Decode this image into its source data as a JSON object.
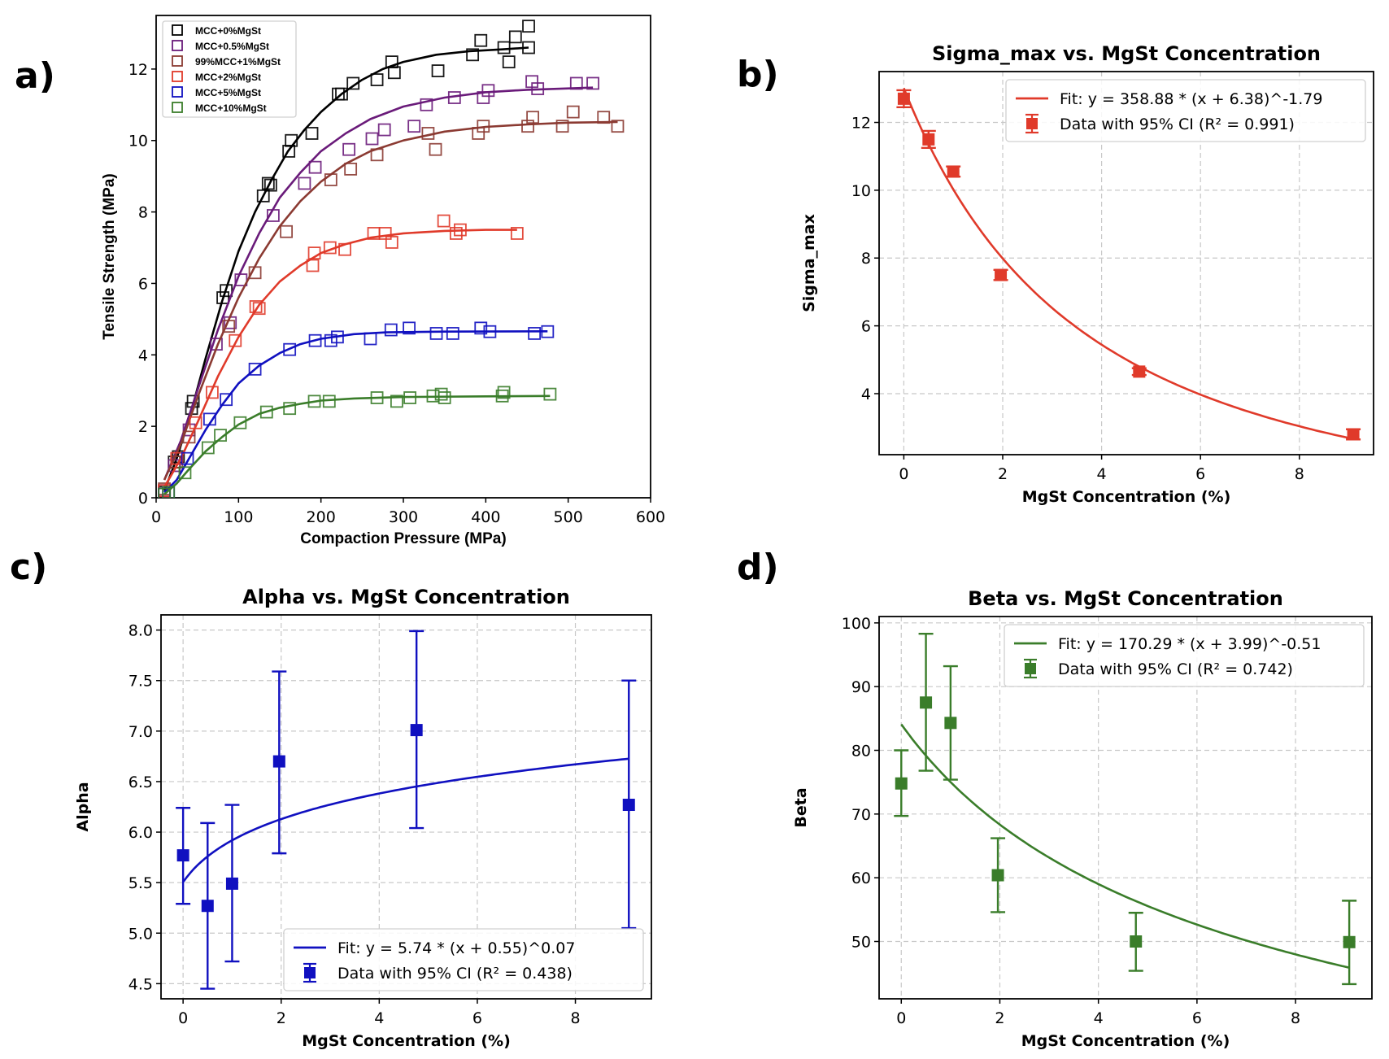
{
  "figure": {
    "panel_labels": [
      "a)",
      "b)",
      "c)",
      "d)"
    ]
  },
  "chart_data": [
    {
      "id": "a",
      "type": "scatter",
      "title": "",
      "xlabel": "Compaction Pressure (MPa)",
      "ylabel": "Tensile Strength (MPa)",
      "xlim": [
        0,
        600
      ],
      "ylim": [
        0,
        13.5
      ],
      "xticks": [
        0,
        100,
        200,
        300,
        400,
        500,
        600
      ],
      "yticks": [
        0,
        2,
        4,
        6,
        8,
        10,
        12
      ],
      "grid": false,
      "legend_position": "top-left",
      "marker": "open-square",
      "series": [
        {
          "name": "MCC+0%MgSt",
          "color": "#000000",
          "points": [
            [
              10,
              0.15
            ],
            [
              22,
              1.0
            ],
            [
              27,
              1.15
            ],
            [
              43,
              2.5
            ],
            [
              45,
              2.7
            ],
            [
              81,
              5.6
            ],
            [
              85,
              5.8
            ],
            [
              130,
              8.45
            ],
            [
              136,
              8.8
            ],
            [
              139,
              8.75
            ],
            [
              161,
              9.7
            ],
            [
              164,
              10.0
            ],
            [
              189,
              10.2
            ],
            [
              221,
              11.3
            ],
            [
              225,
              11.3
            ],
            [
              239,
              11.6
            ],
            [
              268,
              11.7
            ],
            [
              289,
              11.9
            ],
            [
              286,
              12.2
            ],
            [
              342,
              11.95
            ],
            [
              384,
              12.4
            ],
            [
              394,
              12.8
            ],
            [
              422,
              12.6
            ],
            [
              428,
              12.2
            ],
            [
              436,
              12.9
            ],
            [
              452,
              13.2
            ],
            [
              452,
              12.6
            ]
          ],
          "fit": [
            [
              10,
              0.2
            ],
            [
              25,
              1.1
            ],
            [
              40,
              2.2
            ],
            [
              60,
              3.9
            ],
            [
              80,
              5.5
            ],
            [
              100,
              6.9
            ],
            [
              120,
              8.0
            ],
            [
              140,
              8.9
            ],
            [
              160,
              9.7
            ],
            [
              180,
              10.3
            ],
            [
              200,
              10.8
            ],
            [
              225,
              11.3
            ],
            [
              250,
              11.7
            ],
            [
              275,
              12.0
            ],
            [
              300,
              12.2
            ],
            [
              340,
              12.4
            ],
            [
              380,
              12.5
            ],
            [
              420,
              12.55
            ],
            [
              452,
              12.6
            ]
          ]
        },
        {
          "name": "MCC+0.5%MgSt",
          "color": "#6a1b7a",
          "points": [
            [
              10,
              0.2
            ],
            [
              22,
              0.9
            ],
            [
              40,
              1.9
            ],
            [
              73,
              4.3
            ],
            [
              90,
              4.9
            ],
            [
              103,
              6.1
            ],
            [
              142,
              7.9
            ],
            [
              180,
              8.8
            ],
            [
              193,
              9.25
            ],
            [
              234,
              9.75
            ],
            [
              262,
              10.05
            ],
            [
              277,
              10.3
            ],
            [
              313,
              10.4
            ],
            [
              328,
              11.0
            ],
            [
              362,
              11.2
            ],
            [
              397,
              11.2
            ],
            [
              403,
              11.4
            ],
            [
              456,
              11.65
            ],
            [
              463,
              11.45
            ],
            [
              510,
              11.6
            ],
            [
              530,
              11.6
            ]
          ],
          "fit": [
            [
              10,
              0.5
            ],
            [
              30,
              1.6
            ],
            [
              50,
              3.0
            ],
            [
              75,
              4.7
            ],
            [
              100,
              6.2
            ],
            [
              125,
              7.4
            ],
            [
              150,
              8.4
            ],
            [
              175,
              9.1
            ],
            [
              200,
              9.7
            ],
            [
              230,
              10.2
            ],
            [
              260,
              10.6
            ],
            [
              300,
              10.95
            ],
            [
              350,
              11.2
            ],
            [
              400,
              11.35
            ],
            [
              450,
              11.42
            ],
            [
              530,
              11.48
            ]
          ]
        },
        {
          "name": "99%MCC+1%MgSt",
          "color": "#8b3a32",
          "points": [
            [
              10,
              0.25
            ],
            [
              25,
              1.0
            ],
            [
              40,
              1.7
            ],
            [
              88,
              4.8
            ],
            [
              120,
              6.3
            ],
            [
              158,
              7.45
            ],
            [
              212,
              8.9
            ],
            [
              236,
              9.2
            ],
            [
              268,
              9.6
            ],
            [
              339,
              9.75
            ],
            [
              330,
              10.2
            ],
            [
              391,
              10.2
            ],
            [
              397,
              10.4
            ],
            [
              451,
              10.4
            ],
            [
              457,
              10.65
            ],
            [
              506,
              10.8
            ],
            [
              493,
              10.4
            ],
            [
              543,
              10.65
            ],
            [
              560,
              10.4
            ]
          ],
          "fit": [
            [
              10,
              0.5
            ],
            [
              30,
              1.5
            ],
            [
              50,
              2.8
            ],
            [
              75,
              4.3
            ],
            [
              100,
              5.6
            ],
            [
              125,
              6.7
            ],
            [
              150,
              7.6
            ],
            [
              175,
              8.3
            ],
            [
              200,
              8.85
            ],
            [
              230,
              9.35
            ],
            [
              260,
              9.7
            ],
            [
              300,
              10.0
            ],
            [
              350,
              10.25
            ],
            [
              400,
              10.38
            ],
            [
              450,
              10.45
            ],
            [
              500,
              10.5
            ],
            [
              560,
              10.52
            ]
          ]
        },
        {
          "name": "MCC+2%MgSt",
          "color": "#e03a2a",
          "points": [
            [
              10,
              0.2
            ],
            [
              25,
              1.1
            ],
            [
              48,
              2.1
            ],
            [
              68,
              2.95
            ],
            [
              96,
              4.4
            ],
            [
              121,
              5.35
            ],
            [
              125,
              5.3
            ],
            [
              190,
              6.5
            ],
            [
              192,
              6.85
            ],
            [
              211,
              7.0
            ],
            [
              229,
              6.95
            ],
            [
              264,
              7.4
            ],
            [
              278,
              7.4
            ],
            [
              286,
              7.15
            ],
            [
              349,
              7.75
            ],
            [
              364,
              7.4
            ],
            [
              369,
              7.5
            ],
            [
              438,
              7.4
            ]
          ],
          "fit": [
            [
              10,
              0.3
            ],
            [
              30,
              1.1
            ],
            [
              50,
              2.1
            ],
            [
              75,
              3.4
            ],
            [
              100,
              4.5
            ],
            [
              125,
              5.4
            ],
            [
              150,
              6.05
            ],
            [
              175,
              6.5
            ],
            [
              200,
              6.85
            ],
            [
              230,
              7.1
            ],
            [
              260,
              7.28
            ],
            [
              300,
              7.4
            ],
            [
              350,
              7.47
            ],
            [
              400,
              7.5
            ],
            [
              438,
              7.5
            ]
          ]
        },
        {
          "name": "MCC+5%MgSt",
          "color": "#1010c0",
          "points": [
            [
              10,
              0.1
            ],
            [
              15,
              0.15
            ],
            [
              38,
              1.1
            ],
            [
              65,
              2.2
            ],
            [
              85,
              2.75
            ],
            [
              120,
              3.6
            ],
            [
              162,
              4.15
            ],
            [
              193,
              4.4
            ],
            [
              212,
              4.4
            ],
            [
              220,
              4.5
            ],
            [
              260,
              4.45
            ],
            [
              285,
              4.7
            ],
            [
              307,
              4.75
            ],
            [
              340,
              4.6
            ],
            [
              360,
              4.6
            ],
            [
              394,
              4.75
            ],
            [
              405,
              4.65
            ],
            [
              459,
              4.6
            ],
            [
              475,
              4.65
            ]
          ],
          "fit": [
            [
              10,
              0.15
            ],
            [
              25,
              0.5
            ],
            [
              40,
              1.1
            ],
            [
              60,
              1.9
            ],
            [
              80,
              2.6
            ],
            [
              100,
              3.2
            ],
            [
              125,
              3.7
            ],
            [
              150,
              4.05
            ],
            [
              175,
              4.3
            ],
            [
              200,
              4.45
            ],
            [
              240,
              4.58
            ],
            [
              280,
              4.63
            ],
            [
              350,
              4.65
            ],
            [
              475,
              4.66
            ]
          ]
        },
        {
          "name": "MCC+10%MgSt",
          "color": "#3a7d2a",
          "points": [
            [
              10,
              0.1
            ],
            [
              15,
              0.15
            ],
            [
              35,
              0.7
            ],
            [
              63,
              1.4
            ],
            [
              78,
              1.75
            ],
            [
              102,
              2.1
            ],
            [
              134,
              2.4
            ],
            [
              162,
              2.5
            ],
            [
              192,
              2.7
            ],
            [
              210,
              2.7
            ],
            [
              268,
              2.8
            ],
            [
              292,
              2.7
            ],
            [
              308,
              2.8
            ],
            [
              336,
              2.85
            ],
            [
              346,
              2.9
            ],
            [
              350,
              2.8
            ],
            [
              420,
              2.85
            ],
            [
              422,
              2.95
            ],
            [
              478,
              2.9
            ]
          ],
          "fit": [
            [
              10,
              0.1
            ],
            [
              25,
              0.4
            ],
            [
              40,
              0.8
            ],
            [
              60,
              1.3
            ],
            [
              80,
              1.7
            ],
            [
              100,
              2.05
            ],
            [
              125,
              2.35
            ],
            [
              150,
              2.52
            ],
            [
              175,
              2.63
            ],
            [
              200,
              2.72
            ],
            [
              240,
              2.78
            ],
            [
              300,
              2.82
            ],
            [
              400,
              2.84
            ],
            [
              478,
              2.85
            ]
          ]
        }
      ]
    },
    {
      "id": "b",
      "type": "scatter",
      "title": "Sigma_max vs. MgSt Concentration",
      "xlabel": "MgSt Concentration (%)",
      "ylabel": "Sigma_max",
      "xlim": [
        -0.5,
        9.5
      ],
      "ylim": [
        2.2,
        13.5
      ],
      "xticks": [
        0,
        2,
        4,
        6,
        8
      ],
      "yticks": [
        4,
        6,
        8,
        10,
        12
      ],
      "grid": true,
      "legend_position": "top-right",
      "color": "#e03a2a",
      "fit_label": "Fit: y = 358.88 * (x + 6.38)^-1.79",
      "data_label": "Data with 95% CI (R² = 0.991)",
      "fit_params": {
        "a": 358.88,
        "c": 6.38,
        "b": -1.79
      },
      "x": [
        0,
        0.5,
        1,
        1.96,
        4.76,
        9.09
      ],
      "y": [
        12.7,
        11.5,
        10.55,
        7.5,
        4.65,
        2.8
      ],
      "ci_low": [
        12.45,
        11.25,
        10.4,
        7.35,
        4.55,
        2.65
      ],
      "ci_high": [
        12.95,
        11.75,
        10.7,
        7.65,
        4.75,
        2.95
      ]
    },
    {
      "id": "c",
      "type": "scatter",
      "title": "Alpha vs. MgSt Concentration",
      "xlabel": "MgSt Concentration (%)",
      "ylabel": "Alpha",
      "xlim": [
        -0.45,
        9.55
      ],
      "ylim": [
        4.35,
        8.15
      ],
      "xticks": [
        0,
        2,
        4,
        6,
        8
      ],
      "yticks": [
        4.5,
        5.0,
        5.5,
        6.0,
        6.5,
        7.0,
        7.5,
        8.0
      ],
      "ytick_labels": [
        "4.5",
        "5.0",
        "5.5",
        "6.0",
        "6.5",
        "7.0",
        "7.5",
        "8.0"
      ],
      "grid": true,
      "legend_position": "bottom-right",
      "color": "#1010c0",
      "fit_label": "Fit: y = 5.74 * (x + 0.55)^0.07",
      "data_label": "Data with 95% CI (R² = 0.438)",
      "fit_params": {
        "a": 5.74,
        "c": 0.55,
        "b": 0.07
      },
      "x": [
        0,
        0.5,
        1,
        1.96,
        4.76,
        9.09
      ],
      "y": [
        5.77,
        5.27,
        5.49,
        6.7,
        7.01,
        6.27
      ],
      "ci_low": [
        5.29,
        4.45,
        4.72,
        5.79,
        6.04,
        5.05
      ],
      "ci_high": [
        6.24,
        6.09,
        6.27,
        7.59,
        7.99,
        7.5
      ]
    },
    {
      "id": "d",
      "type": "scatter",
      "title": "Beta vs. MgSt Concentration",
      "xlabel": "MgSt Concentration (%)",
      "ylabel": "Beta",
      "xlim": [
        -0.45,
        9.55
      ],
      "ylim": [
        41,
        101
      ],
      "xticks": [
        0,
        2,
        4,
        6,
        8
      ],
      "yticks": [
        50,
        60,
        70,
        80,
        90,
        100
      ],
      "grid": true,
      "legend_position": "top-right",
      "color": "#3a7d2a",
      "fit_label": "Fit: y = 170.29 * (x + 3.99)^-0.51",
      "data_label": "Data with 95% CI (R² = 0.742)",
      "fit_params": {
        "a": 170.29,
        "c": 3.99,
        "b": -0.51
      },
      "x": [
        0,
        0.5,
        1,
        1.96,
        4.76,
        9.09
      ],
      "y": [
        74.8,
        87.5,
        84.3,
        60.4,
        50.0,
        49.9
      ],
      "ci_low": [
        69.7,
        76.8,
        75.4,
        54.6,
        45.4,
        43.3
      ],
      "ci_high": [
        80.0,
        98.3,
        93.2,
        66.2,
        54.5,
        56.4
      ]
    }
  ]
}
